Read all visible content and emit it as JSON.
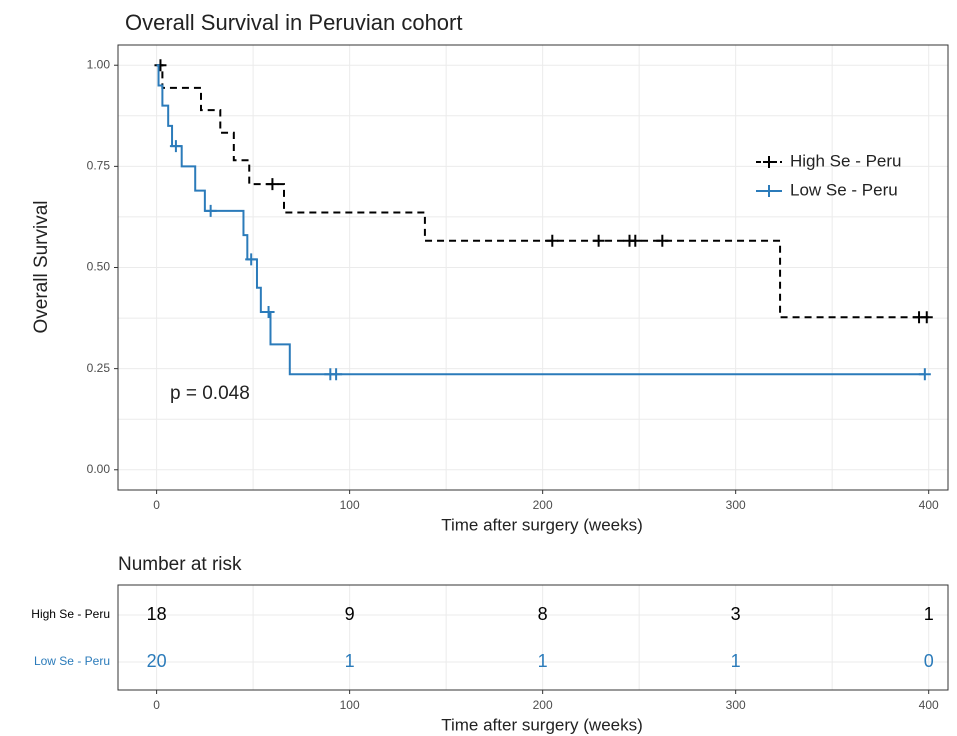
{
  "chart_data": {
    "type": "step",
    "title": "Overall Survival in Peruvian cohort",
    "xlabel": "Time after surgery (weeks)",
    "ylabel": "Overall Survival",
    "annotation": "p = 0.048",
    "xlim": [
      -20,
      410
    ],
    "ylim": [
      -0.05,
      1.05
    ],
    "xticks": [
      0,
      100,
      200,
      300,
      400
    ],
    "yticks": [
      {
        "value": 0,
        "label": "0.00"
      },
      {
        "value": 0.25,
        "label": "0.25"
      },
      {
        "value": 0.5,
        "label": "0.50"
      },
      {
        "value": 0.75,
        "label": "0.75"
      },
      {
        "value": 1,
        "label": "1.00"
      }
    ],
    "grid": true,
    "legend": "right",
    "series": [
      {
        "name": "High Se - Peru",
        "color": "#000000",
        "dashed": true,
        "x": [
          0,
          3,
          23,
          33,
          40,
          48,
          66,
          139,
          323,
          400
        ],
        "values": [
          1,
          0.944,
          0.889,
          0.833,
          0.765,
          0.706,
          0.636,
          0.566,
          0.377,
          0.377
        ],
        "censored": {
          "x": [
            2,
            60,
            205,
            229,
            245,
            248,
            262,
            395,
            399
          ],
          "values": [
            1,
            0.706,
            0.566,
            0.566,
            0.566,
            0.566,
            0.566,
            0.377,
            0.377
          ]
        }
      },
      {
        "name": "Low Se - Peru",
        "color": "#2b7bba",
        "dashed": false,
        "x": [
          0,
          1,
          3,
          6,
          8,
          13,
          20,
          25,
          45,
          47,
          52,
          54,
          59,
          69,
          398
        ],
        "values": [
          1,
          0.95,
          0.9,
          0.85,
          0.8,
          0.75,
          0.69,
          0.64,
          0.58,
          0.52,
          0.45,
          0.39,
          0.31,
          0.236,
          0.236
        ],
        "censored": {
          "x": [
            10,
            28,
            49,
            58,
            90,
            93,
            398
          ],
          "values": [
            0.8,
            0.64,
            0.52,
            0.39,
            0.236,
            0.236,
            0.236
          ]
        }
      }
    ],
    "risk_table": {
      "title": "Number at risk",
      "xlabel": "Time after surgery (weeks)",
      "xticks": [
        0,
        100,
        200,
        300,
        400
      ],
      "rows": [
        {
          "name": "High Se - Peru",
          "color": "#000000",
          "values": [
            18,
            9,
            8,
            3,
            1
          ]
        },
        {
          "name": "Low Se - Peru",
          "color": "#2b7bba",
          "values": [
            20,
            1,
            1,
            1,
            0
          ]
        }
      ]
    }
  }
}
